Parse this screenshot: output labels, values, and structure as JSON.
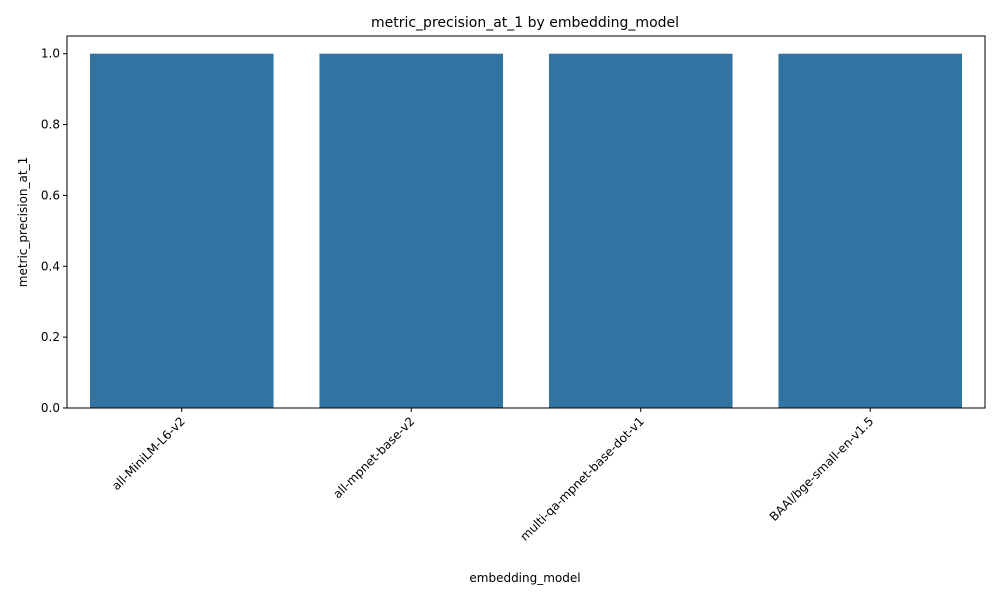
{
  "chart_data": {
    "type": "bar",
    "title": "metric_precision_at_1 by embedding_model",
    "xlabel": "embedding_model",
    "ylabel": "metric_precision_at_1",
    "categories": [
      "all-MiniLM-L6-v2",
      "all-mpnet-base-v2",
      "multi-qa-mpnet-base-dot-v1",
      "BAAI/bge-small-en-v1.5"
    ],
    "values": [
      1.0,
      1.0,
      1.0,
      1.0
    ],
    "ylim": [
      0,
      1.05
    ],
    "yticks": [
      "0.0",
      "0.2",
      "0.4",
      "0.6",
      "0.8",
      "1.0"
    ],
    "bar_color": "#3274a1",
    "grid": false,
    "legend": "none"
  }
}
